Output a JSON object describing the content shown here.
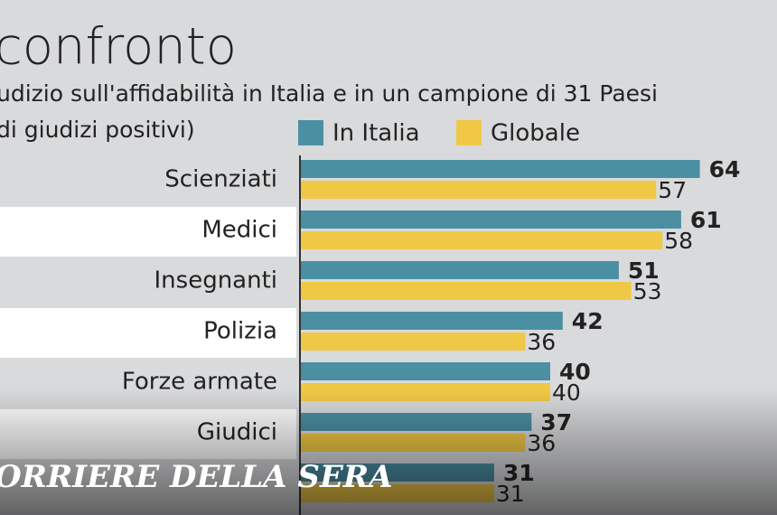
{
  "chart_data": {
    "type": "bar",
    "title": "confronto",
    "subtitle": "udizio sull'affidabilità in Italia e in un campione di 31 Paesi",
    "subtitle_2": "di giudizi positivi)",
    "categories": [
      "Scienziati",
      "Medici",
      "Insegnanti",
      "Polizia",
      "Forze armate",
      "Giudici",
      null
    ],
    "series": [
      {
        "name": "In Italia",
        "color": "#4b8fa3",
        "values": [
          64,
          61,
          51,
          42,
          40,
          37,
          31
        ]
      },
      {
        "name": "Globale",
        "color": "#f0c845",
        "values": [
          57,
          58,
          53,
          36,
          40,
          36,
          31
        ]
      }
    ],
    "watermark": "ORRIERE DELLA SERA"
  }
}
